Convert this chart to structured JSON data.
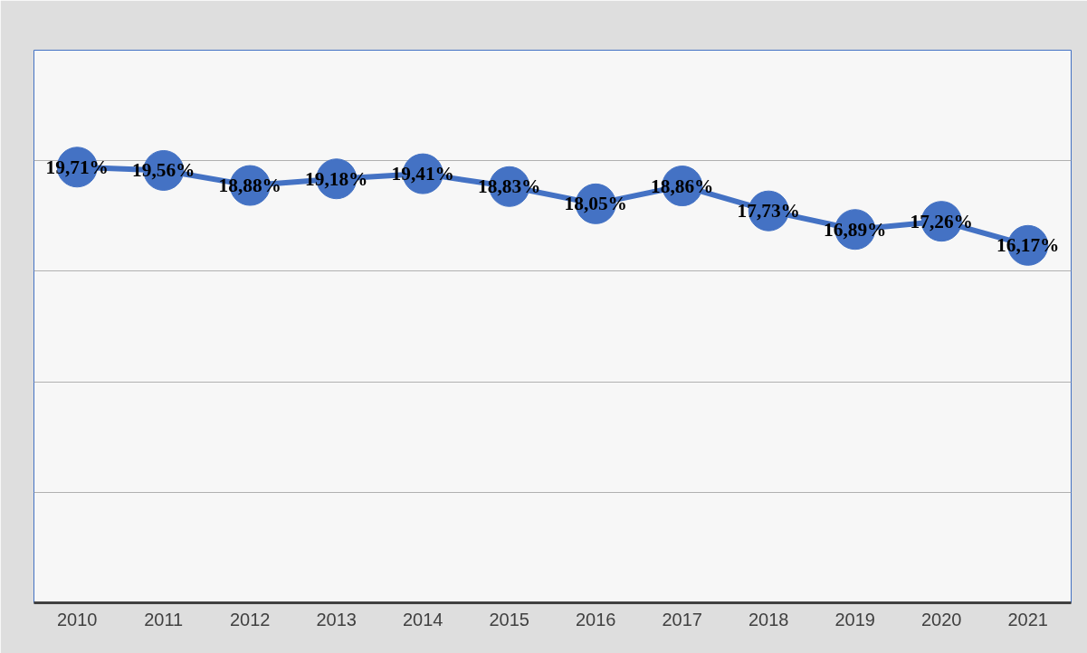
{
  "chart_data": {
    "type": "line",
    "categories": [
      "2010",
      "2011",
      "2012",
      "2013",
      "2014",
      "2015",
      "2016",
      "2017",
      "2018",
      "2019",
      "2020",
      "2021"
    ],
    "values": [
      19.71,
      19.56,
      18.88,
      19.18,
      19.41,
      18.83,
      18.05,
      18.86,
      17.73,
      16.89,
      17.26,
      16.17
    ],
    "value_labels": [
      "19,71%",
      "19,56%",
      "18,88%",
      "19,18%",
      "19,41%",
      "18,83%",
      "18,05%",
      "18,86%",
      "17,73%",
      "16,89%",
      "17,26%",
      "16,17%"
    ],
    "color": "#4472c4",
    "marker": "circle",
    "line_style": "solid",
    "ylim": [
      0,
      25
    ],
    "yticks": [
      {
        "value": 0,
        "label": null
      },
      {
        "value": 5,
        "label": null
      },
      {
        "value": 10,
        "label": null
      },
      {
        "value": 15,
        "label": null
      },
      {
        "value": 20,
        "label": null
      },
      {
        "value": 25,
        "label": null
      }
    ],
    "tick_labels": "x",
    "grid": "y"
  }
}
